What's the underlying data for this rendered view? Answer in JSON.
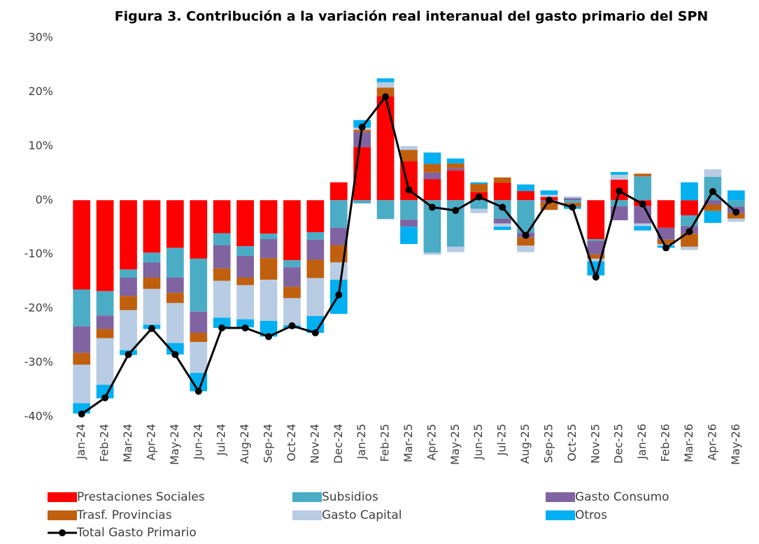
{
  "chart_data": {
    "type": "bar",
    "stacked": true,
    "title": "Figura 3. Contribución a la variación real interanual del gasto primario del SPN",
    "categories": [
      "Jan-24",
      "Feb-24",
      "Mar-24",
      "Apr-24",
      "May-24",
      "Jun-24",
      "Jul-24",
      "Aug-24",
      "Sep-24",
      "Oct-24",
      "Nov-24",
      "Dec-24",
      "Jan-25",
      "Feb-25",
      "Mar-25",
      "Apr-25",
      "May-25",
      "Jun-25",
      "Jul-25",
      "Aug-25",
      "Sep-25",
      "Oct-25",
      "Nov-25",
      "Dec-25",
      "Jan-26",
      "Feb-26",
      "Mar-26",
      "Apr-26",
      "May-26"
    ],
    "series": [
      {
        "name": "Prestaciones Sociales",
        "color": "#ff0000",
        "values": [
          -16.5,
          -16.8,
          -12.8,
          -9.7,
          -8.8,
          -10.8,
          -6.1,
          -8.5,
          -6.2,
          -11.1,
          -5.9,
          3.3,
          9.8,
          19.2,
          7.2,
          3.9,
          5.5,
          1.5,
          3.2,
          1.7,
          0.6,
          0,
          -7.2,
          3.8,
          -1.1,
          -5.1,
          -2.8,
          0,
          0
        ]
      },
      {
        "name": "Subsidios",
        "color": "#4bacc6",
        "values": [
          -6.8,
          -4.5,
          -1.5,
          -1.8,
          -5.5,
          -9.8,
          -2.2,
          -1.8,
          -1,
          -1.3,
          -1.4,
          -5.1,
          -0.6,
          -3.5,
          -3.6,
          -9.7,
          -8.6,
          -1.6,
          -3.4,
          -6,
          0,
          -0.5,
          -0.3,
          -1.1,
          4.4,
          0,
          -2,
          4.3,
          -1.2
        ]
      },
      {
        "name": "Gasto Consumo",
        "color": "#8064a2",
        "values": [
          -4.9,
          -2.5,
          -3.4,
          -2.8,
          -2.8,
          -3.9,
          -4.3,
          -4,
          -3.5,
          -3.6,
          -3.7,
          -3.2,
          2.8,
          0,
          -1.3,
          1.2,
          0.4,
          0,
          -0.9,
          -0.9,
          -0.4,
          0.4,
          -2.5,
          -2.6,
          -3.2,
          -2.2,
          -1.4,
          -0.8,
          -1.2
        ]
      },
      {
        "name": "Trasf. Provincias",
        "color": "#c0600f",
        "values": [
          -2.2,
          -1.7,
          -2.6,
          -2.1,
          -1.9,
          -1.7,
          -2.3,
          -1.4,
          -4,
          -2.1,
          -3.4,
          -3.2,
          0.4,
          1.6,
          2.1,
          1.6,
          0.9,
          1.5,
          1,
          -1.5,
          -1.4,
          -0.7,
          -0.8,
          0,
          0.5,
          -0.8,
          -2.4,
          -1.2,
          -1
        ]
      },
      {
        "name": "Gasto Capital",
        "color": "#b8cce4",
        "values": [
          -7.1,
          -8.6,
          -7.4,
          -6.6,
          -7.4,
          -5.7,
          -6.8,
          -6.3,
          -7.6,
          -5,
          -7,
          -3.2,
          0.4,
          1,
          0.7,
          -0.4,
          -1,
          -0.8,
          -0.6,
          -1.2,
          0.4,
          0.3,
          -0.5,
          0.9,
          -0.5,
          -0.3,
          -0.6,
          1.4,
          -0.6
        ]
      },
      {
        "name": "Otros",
        "color": "#00b0f0",
        "values": [
          -1.9,
          -2.5,
          -0.9,
          -0.8,
          -2.1,
          -3.4,
          -1.9,
          -1.5,
          -2.9,
          -0.6,
          -3.1,
          -6.3,
          1.4,
          0.7,
          -3.2,
          2.1,
          0.9,
          0.3,
          -0.6,
          1.2,
          0.8,
          -0.4,
          -2.6,
          0.5,
          -0.8,
          -0.4,
          3.3,
          -2.2,
          1.8
        ]
      },
      {
        "name": "Total Gasto Primario",
        "type": "line",
        "color": "#000000",
        "values": [
          -39.5,
          -36.5,
          -28.5,
          -23.7,
          -28.5,
          -35.3,
          -23.6,
          -23.6,
          -25.2,
          -23.2,
          -24.5,
          -17.5,
          13.5,
          19.1,
          1.9,
          -1.3,
          -1.9,
          0.6,
          -1.3,
          -6.5,
          0,
          -1.3,
          -14.2,
          1.7,
          -0.7,
          -8.8,
          -5.8,
          1.6,
          -2.2
        ]
      }
    ],
    "ylim": [
      -40,
      30
    ],
    "yticks": [
      {
        "value": -40,
        "label": "-40%"
      },
      {
        "value": -30,
        "label": "-30%"
      },
      {
        "value": -20,
        "label": "-20%"
      },
      {
        "value": -10,
        "label": "-10%"
      },
      {
        "value": 0,
        "label": "0%"
      },
      {
        "value": 10,
        "label": "10%"
      },
      {
        "value": 20,
        "label": "20%"
      },
      {
        "value": 30,
        "label": "30%"
      }
    ],
    "grid": false,
    "legend": "bottom"
  }
}
